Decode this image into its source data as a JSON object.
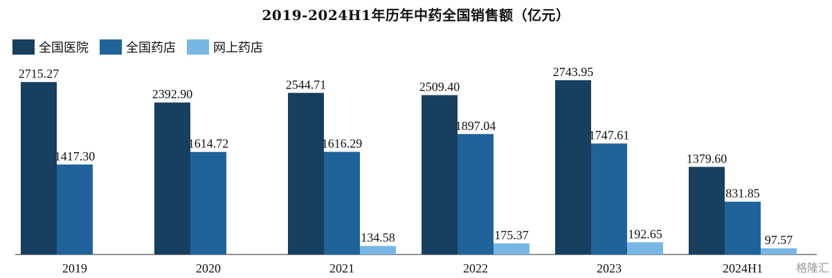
{
  "chart_data": {
    "type": "bar",
    "title": "2019-2024H1年历年中药全国销售额（亿元）",
    "categories": [
      "2019",
      "2020",
      "2021",
      "2022",
      "2023",
      "2024H1"
    ],
    "series": [
      {
        "name": "全国医院",
        "color": "#173f5f",
        "values": [
          2715.27,
          2392.9,
          2544.71,
          2509.4,
          2743.95,
          1379.6
        ]
      },
      {
        "name": "全国药店",
        "color": "#20639b",
        "values": [
          1417.3,
          1614.72,
          1616.29,
          1897.04,
          1747.61,
          831.85
        ]
      },
      {
        "name": "网上药店",
        "color": "#78b7e5",
        "values": [
          null,
          null,
          134.58,
          175.37,
          192.65,
          97.57
        ]
      }
    ],
    "value_labels": [
      [
        "2715.27",
        "2392.90",
        "2544.71",
        "2509.40",
        "2743.95",
        "1379.60"
      ],
      [
        "1417.30",
        "1614.72",
        "1616.29",
        "1897.04",
        "1747.61",
        "831.85"
      ],
      [
        "",
        "",
        "134.58",
        "175.37",
        "192.65",
        "97.57"
      ]
    ],
    "ylim": [
      0,
      3000
    ],
    "legend_position": "top-left",
    "grid": false
  },
  "watermark": "格隆汇"
}
